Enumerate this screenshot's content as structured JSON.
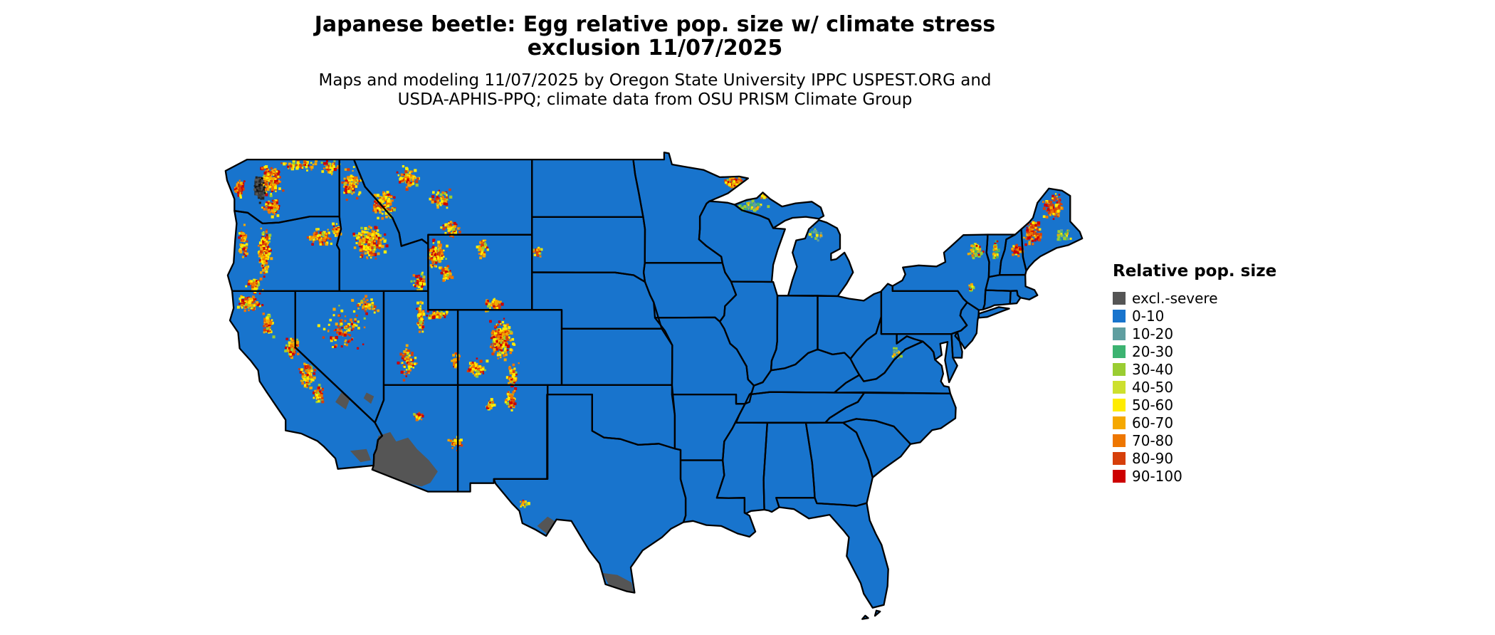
{
  "title": {
    "line1": "Japanese beetle: Egg relative pop. size w/ climate stress",
    "line2": "exclusion 11/07/2025"
  },
  "subtitle": {
    "line1": "Maps and modeling 11/07/2025 by Oregon State University IPPC USPEST.ORG and",
    "line2": "USDA-APHIS-PPQ; climate data from OSU PRISM Climate Group"
  },
  "legend": {
    "title": "Relative pop. size",
    "entries": [
      {
        "label": "excl.-severe",
        "color": "#555555"
      },
      {
        "label": "0-10",
        "color": "#1874CD"
      },
      {
        "label": "10-20",
        "color": "#5F9EA0"
      },
      {
        "label": "20-30",
        "color": "#3CB371"
      },
      {
        "label": "30-40",
        "color": "#9ACD32"
      },
      {
        "label": "40-50",
        "color": "#CDE02E"
      },
      {
        "label": "50-60",
        "color": "#FFEC00"
      },
      {
        "label": "60-70",
        "color": "#F5A800"
      },
      {
        "label": "70-80",
        "color": "#EE7600"
      },
      {
        "label": "80-90",
        "color": "#D63F0A"
      },
      {
        "label": "90-100",
        "color": "#CD0000"
      }
    ]
  },
  "colors": {
    "background": "#ffffff",
    "state_border": "#000000",
    "text": "#000000"
  }
}
